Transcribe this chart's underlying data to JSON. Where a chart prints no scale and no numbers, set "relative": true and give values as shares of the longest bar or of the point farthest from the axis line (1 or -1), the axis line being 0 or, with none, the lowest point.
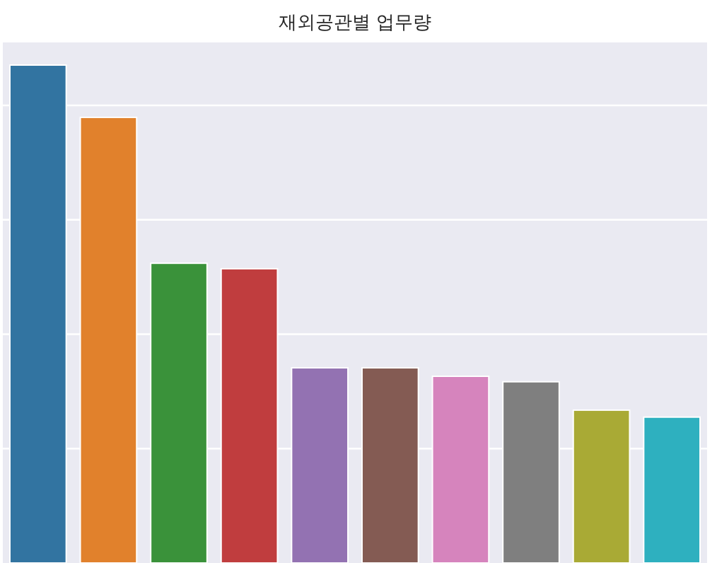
{
  "chart_data": {
    "type": "bar",
    "title": "재외공관별 업무량",
    "relative": true,
    "grid": "y",
    "categories": [
      null,
      null,
      null,
      null,
      null,
      null,
      null,
      null,
      null,
      null
    ],
    "values": [
      1,
      0.895,
      0.602,
      0.591,
      0.392,
      0.392,
      0.375,
      0.364,
      0.307,
      0.293
    ],
    "colors": [
      "#3274a1",
      "#e1812c",
      "#3a923a",
      "#c03d3e",
      "#9372b2",
      "#845b53",
      "#d684bd",
      "#7f7f7f",
      "#a9aa35",
      "#2eb0bf"
    ]
  }
}
